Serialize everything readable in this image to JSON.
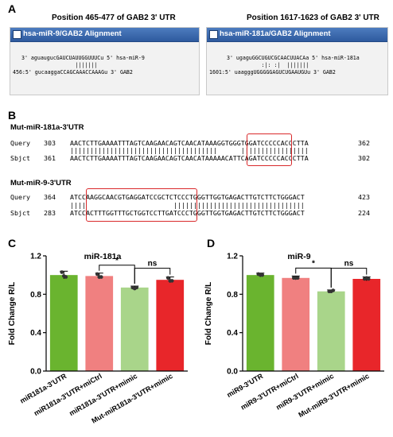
{
  "panels": {
    "A": "A",
    "B": "B",
    "C": "C",
    "D": "D"
  },
  "panelA": {
    "left": {
      "position_title": "Position 465-477 of GAB2 3' UTR",
      "header": "hsa-miR-9/GAB2 Alignment",
      "line1": "3' aguaugucGAUCUAUUGGUUUCu 5' hsa-miR-9",
      "line2": "                 |||||||",
      "line3": "456:5' gucaaggaCCAGCAAACCAAAGu 3' GAB2"
    },
    "right": {
      "position_title": "Position 1617-1623 of GAB2 3' UTR",
      "header": "hsa-miR-181a/GAB2 Alignment",
      "line1": "3' ugaguGGCUGUCGCAACUUACAa 5' hsa-miR-181a",
      "line2": "           :|: :|  |||||||",
      "line3": "1601:5' uaagggUGGGGGAGUCUGAAUGUu 3' GAB2"
    }
  },
  "panelB": {
    "mut181": {
      "title": "Mut-miR-181a-3'UTR",
      "query_label": "Query",
      "query_start": "303",
      "query_seq": "AACTCTTGAAAATTTAGTCAAGAACAGTCAACATAAAGGTGGGTGGATCCCCCACCCTTA",
      "query_end": "362",
      "match_line": "|||||||||||||||||||||||||||||||||||||      |||||||||||||||||",
      "sbjct_label": "Sbjct",
      "sbjct_start": "361",
      "sbjct_seq": "AACTCTTGAAAATTTAGTCAAGAACAGTCAACATAAAAACATTCAGATCCCCCACCCTTA",
      "sbjct_end": "302"
    },
    "mut9": {
      "title": "Mut-miR-9-3'UTR",
      "query_label": "Query",
      "query_start": "364",
      "query_seq": "ATCCAAGGCAACGTGAGGATCCGCTCTCCCTGGGTTGGTGAGACTTGTCTTCTGGGACT",
      "query_end": "423",
      "match_line": "||||                      |||||||||||||||||||||||||||||||||",
      "sbjct_label": "Sbjct",
      "sbjct_start": "283",
      "sbjct_seq": "ATCCACTTTGGTTTGCTGGTCCTTGATCCCTGGGTTGGTGAGACTTGTCTTCTGGGACT",
      "sbjct_end": "224"
    }
  },
  "chart_data": [
    {
      "type": "bar",
      "title": "miR-181a",
      "ylabel": "Fold Change R/L",
      "ylim": [
        0,
        1.2
      ],
      "yticks": [
        "0.0",
        "0.4",
        "0.8",
        "1.2"
      ],
      "yticks_values": [
        0,
        0.4,
        0.8,
        1.2
      ],
      "categories": [
        "miR181a-3'UTR",
        "miR181a-3'UTR+miCtrl",
        "miR181a-3'UTR+mimic",
        "Mut-miR181a-3'UTR+mimic"
      ],
      "values": [
        1.0,
        0.99,
        0.87,
        0.95
      ],
      "errors": [
        0.04,
        0.03,
        0.015,
        0.03
      ],
      "points": [
        [
          1.03,
          0.99,
          0.98
        ],
        [
          1.01,
          0.98,
          0.98
        ],
        [
          0.87,
          0.86,
          0.87
        ],
        [
          0.97,
          0.94,
          0.94
        ]
      ],
      "colors": [
        "#6ab42f",
        "#f08080",
        "#a9d58a",
        "#e8262a"
      ],
      "significance": [
        {
          "from": 1,
          "to": 2,
          "label": "*"
        },
        {
          "from": 2,
          "to": 3,
          "label": "ns"
        }
      ]
    },
    {
      "type": "bar",
      "title": "miR-9",
      "ylabel": "Fold Change R/L",
      "ylim": [
        0,
        1.2
      ],
      "yticks": [
        "0.0",
        "0.4",
        "0.8",
        "1.2"
      ],
      "yticks_values": [
        0,
        0.4,
        0.8,
        1.2
      ],
      "categories": [
        "miR9-3'UTR",
        "miR9-3'UTR+miCtrl",
        "miR9-3'UTR+mimic",
        "Mut-miR9-3'UTR+mimic"
      ],
      "values": [
        1.0,
        0.97,
        0.83,
        0.96
      ],
      "errors": [
        0.02,
        0.02,
        0.015,
        0.02
      ],
      "points": [
        [
          1.01,
          1.0,
          1.0
        ],
        [
          0.97,
          0.97,
          0.97
        ],
        [
          0.83,
          0.83,
          0.84
        ],
        [
          0.96,
          0.97,
          0.96
        ]
      ],
      "colors": [
        "#6ab42f",
        "#f08080",
        "#a9d58a",
        "#e8262a"
      ],
      "significance": [
        {
          "from": 1,
          "to": 2,
          "label": "*"
        },
        {
          "from": 2,
          "to": 3,
          "label": "ns"
        }
      ]
    }
  ]
}
